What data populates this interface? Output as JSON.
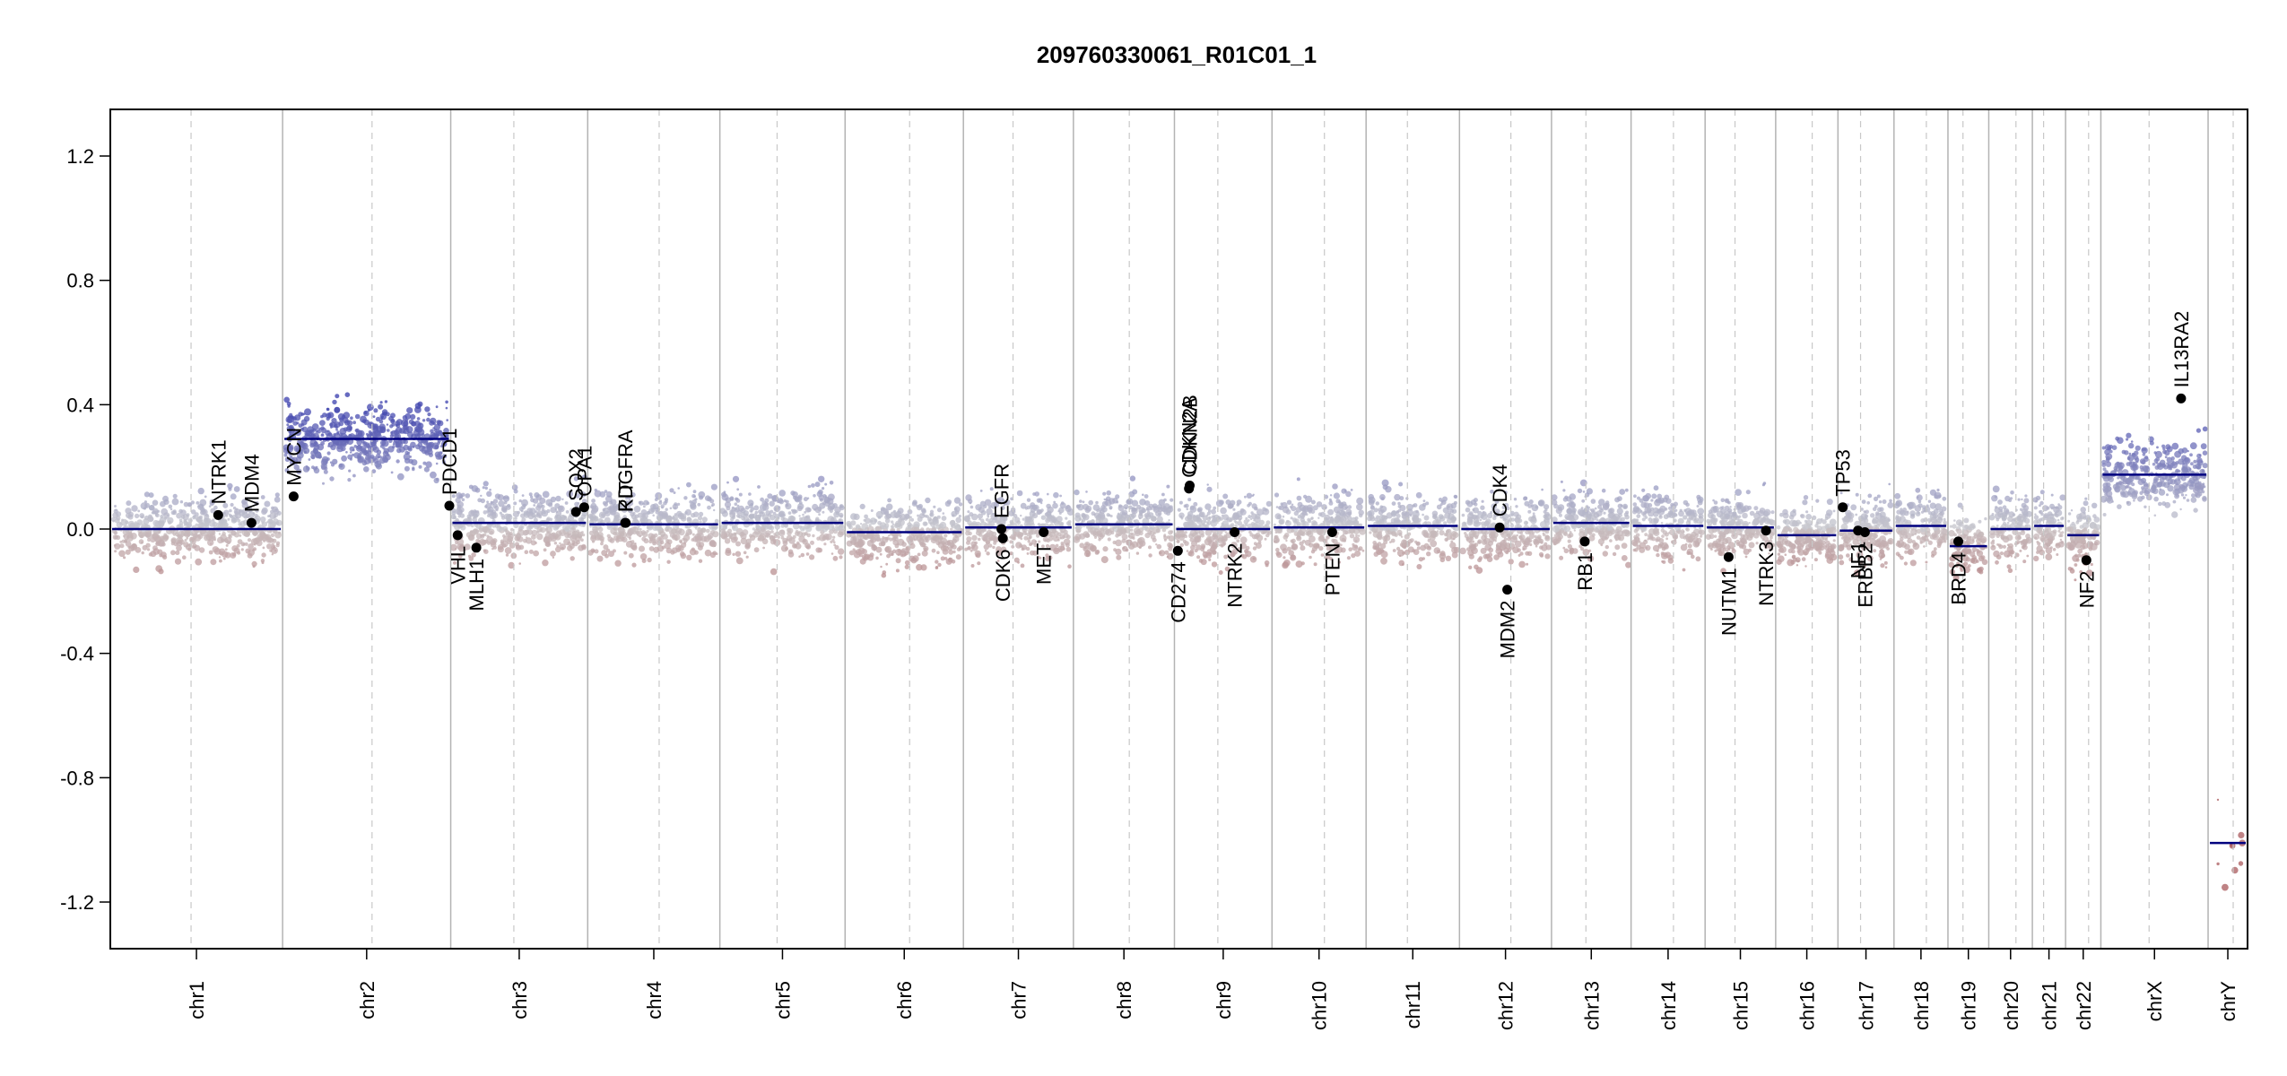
{
  "chart_data": {
    "type": "scatter",
    "title": "209760330061_R01C01_1",
    "xlabel": "",
    "ylabel": "",
    "ylim": [
      -1.35,
      1.35
    ],
    "yticks": [
      -1.2,
      -0.8,
      -0.4,
      0.0,
      0.4,
      0.8,
      1.2
    ],
    "ytick_labels": [
      "-1.2",
      "-0.8",
      "-0.4",
      "0.0",
      "0.4",
      "0.8",
      "1.2"
    ],
    "grid": false,
    "chromosomes": [
      {
        "name": "chr1",
        "len": 249
      },
      {
        "name": "chr2",
        "len": 243
      },
      {
        "name": "chr3",
        "len": 198
      },
      {
        "name": "chr4",
        "len": 191
      },
      {
        "name": "chr5",
        "len": 181
      },
      {
        "name": "chr6",
        "len": 171
      },
      {
        "name": "chr7",
        "len": 159
      },
      {
        "name": "chr8",
        "len": 146
      },
      {
        "name": "chr9",
        "len": 141
      },
      {
        "name": "chr10",
        "len": 136
      },
      {
        "name": "chr11",
        "len": 135
      },
      {
        "name": "chr12",
        "len": 133
      },
      {
        "name": "chr13",
        "len": 115
      },
      {
        "name": "chr14",
        "len": 107
      },
      {
        "name": "chr15",
        "len": 102
      },
      {
        "name": "chr16",
        "len": 90
      },
      {
        "name": "chr17",
        "len": 81
      },
      {
        "name": "chr18",
        "len": 78
      },
      {
        "name": "chr19",
        "len": 59
      },
      {
        "name": "chr20",
        "len": 63
      },
      {
        "name": "chr21",
        "len": 48
      },
      {
        "name": "chr22",
        "len": 51
      },
      {
        "name": "chrX",
        "len": 155
      },
      {
        "name": "chrY",
        "len": 57
      }
    ],
    "segments": [
      {
        "chr": "chr1",
        "value": 0.0
      },
      {
        "chr": "chr2",
        "value": 0.29
      },
      {
        "chr": "chr3",
        "value": 0.02
      },
      {
        "chr": "chr4",
        "value": 0.015
      },
      {
        "chr": "chr5",
        "value": 0.02
      },
      {
        "chr": "chr6",
        "value": -0.01
      },
      {
        "chr": "chr7",
        "value": 0.005
      },
      {
        "chr": "chr8",
        "value": 0.015
      },
      {
        "chr": "chr9",
        "value": 0.0
      },
      {
        "chr": "chr10",
        "value": 0.005
      },
      {
        "chr": "chr11",
        "value": 0.01
      },
      {
        "chr": "chr12",
        "value": 0.0
      },
      {
        "chr": "chr13",
        "value": 0.02
      },
      {
        "chr": "chr14",
        "value": 0.01
      },
      {
        "chr": "chr15",
        "value": 0.005
      },
      {
        "chr": "chr16",
        "value": -0.02
      },
      {
        "chr": "chr17",
        "value": -0.005
      },
      {
        "chr": "chr18",
        "value": 0.01
      },
      {
        "chr": "chr19",
        "value": -0.055
      },
      {
        "chr": "chr20",
        "value": 0.0
      },
      {
        "chr": "chr21",
        "value": 0.01
      },
      {
        "chr": "chr22",
        "value": -0.02
      },
      {
        "chr": "chrX",
        "value": 0.175
      },
      {
        "chr": "chrY",
        "value": -1.01
      }
    ],
    "genes": [
      {
        "name": "NTRK1",
        "chr": "chr1",
        "pos": 156,
        "value": 0.045
      },
      {
        "name": "MDM4",
        "chr": "chr1",
        "pos": 204,
        "value": 0.02
      },
      {
        "name": "MYCN",
        "chr": "chr2",
        "pos": 16,
        "value": 0.105
      },
      {
        "name": "PDCD1",
        "chr": "chr2",
        "pos": 241,
        "value": 0.075
      },
      {
        "name": "VHL",
        "chr": "chr3",
        "pos": 10,
        "value": -0.02
      },
      {
        "name": "MLH1",
        "chr": "chr3",
        "pos": 37,
        "value": -0.06
      },
      {
        "name": "SOX2",
        "chr": "chr3",
        "pos": 181,
        "value": 0.055
      },
      {
        "name": "OPA1",
        "chr": "chr3",
        "pos": 193,
        "value": 0.07
      },
      {
        "name": "KIT",
        "chr": "chr4",
        "pos": 55,
        "value": 0.02
      },
      {
        "name": "PDGFRA",
        "chr": "chr4",
        "pos": 54,
        "value": 0.02
      },
      {
        "name": "EGFR",
        "chr": "chr7",
        "pos": 55,
        "value": 0.0
      },
      {
        "name": "CDK6",
        "chr": "chr7",
        "pos": 57,
        "value": -0.03
      },
      {
        "name": "MET",
        "chr": "chr7",
        "pos": 116,
        "value": -0.01
      },
      {
        "name": "CD274",
        "chr": "chr9",
        "pos": 5,
        "value": -0.07
      },
      {
        "name": "CDKN2A",
        "chr": "chr9",
        "pos": 21,
        "value": 0.13
      },
      {
        "name": "CDKN2B",
        "chr": "chr9",
        "pos": 22,
        "value": 0.14
      },
      {
        "name": "NTRK2",
        "chr": "chr9",
        "pos": 87,
        "value": -0.01
      },
      {
        "name": "PTEN",
        "chr": "chr10",
        "pos": 87,
        "value": -0.01
      },
      {
        "name": "CDK4",
        "chr": "chr12",
        "pos": 58,
        "value": 0.005
      },
      {
        "name": "MDM2",
        "chr": "chr12",
        "pos": 69,
        "value": -0.195
      },
      {
        "name": "RB1",
        "chr": "chr13",
        "pos": 48,
        "value": -0.04
      },
      {
        "name": "NUTM1",
        "chr": "chr15",
        "pos": 34,
        "value": -0.09
      },
      {
        "name": "NTRK3",
        "chr": "chr15",
        "pos": 88,
        "value": -0.005
      },
      {
        "name": "TP53",
        "chr": "chr17",
        "pos": 7,
        "value": 0.07
      },
      {
        "name": "NF1",
        "chr": "chr17",
        "pos": 29,
        "value": -0.005
      },
      {
        "name": "ERBB2",
        "chr": "chr17",
        "pos": 39,
        "value": -0.01
      },
      {
        "name": "BRD4",
        "chr": "chr19",
        "pos": 15,
        "value": -0.04
      },
      {
        "name": "NF2",
        "chr": "chr22",
        "pos": 30,
        "value": -0.1
      },
      {
        "name": "IL13RA2",
        "chr": "chrX",
        "pos": 116,
        "value": 0.42
      }
    ]
  }
}
